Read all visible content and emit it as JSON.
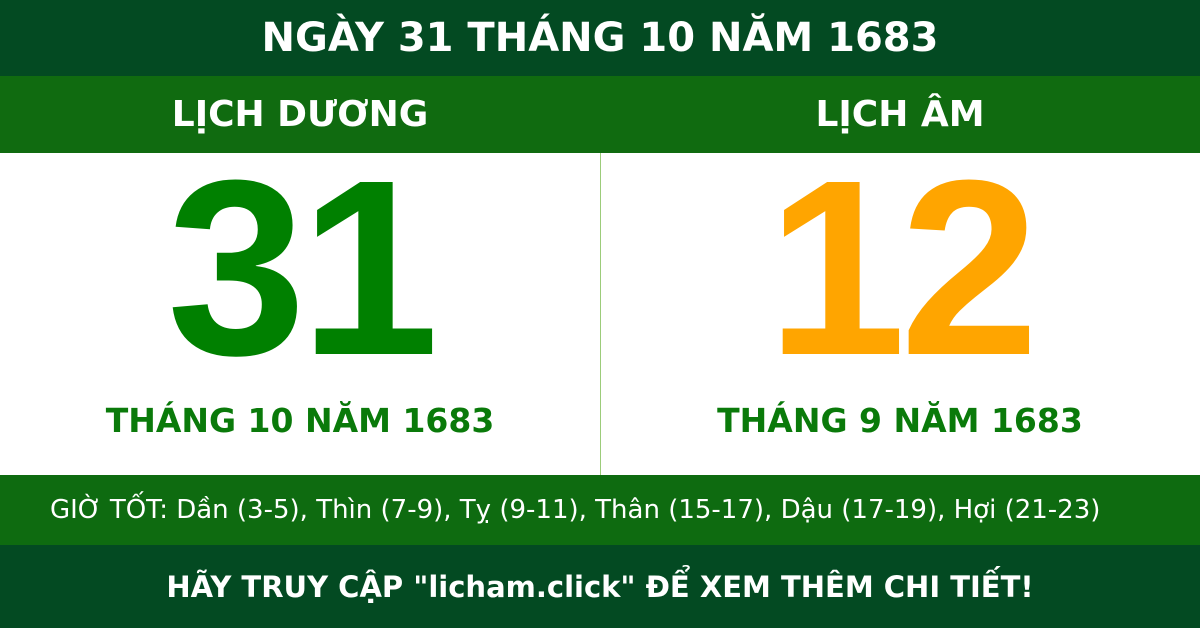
{
  "title": "NGÀY 31 THÁNG 10 NĂM 1683",
  "solar": {
    "label": "LỊCH DƯƠNG",
    "day": "31",
    "month_year": "THÁNG 10 NĂM 1683"
  },
  "lunar": {
    "label": "LỊCH ÂM",
    "day": "12",
    "month_year": "THÁNG 9 NĂM 1683"
  },
  "good_hours": "GIỜ TỐT: Dần (3-5), Thìn (7-9), Tỵ (9-11), Thân (15-17), Dậu (17-19), Hợi (21-23)",
  "footer": "HÃY TRUY CẬP \"licham.click\" ĐỂ XEM THÊM CHI TIẾT!",
  "colors": {
    "dark_green": "#034a22",
    "green": "#106b10",
    "solar_day": "#008000",
    "lunar_day": "#ffa500"
  }
}
